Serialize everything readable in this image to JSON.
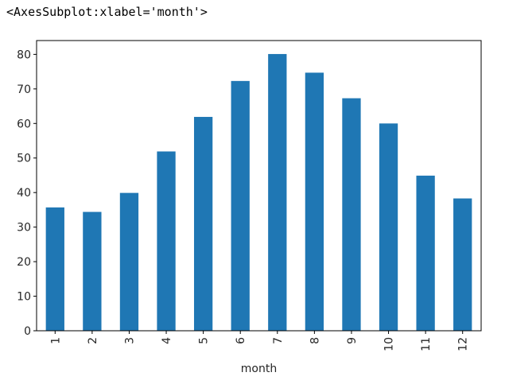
{
  "output_repr": "<AxesSubplot:xlabel='month'>",
  "chart_data": {
    "type": "bar",
    "categories": [
      "1",
      "2",
      "3",
      "4",
      "5",
      "6",
      "7",
      "8",
      "9",
      "10",
      "11",
      "12"
    ],
    "values": [
      35.7,
      34.4,
      39.9,
      51.9,
      61.9,
      72.3,
      80.1,
      74.7,
      67.3,
      60.0,
      44.9,
      38.3
    ],
    "xlabel": "month",
    "ylabel": "",
    "ylim": [
      0,
      84
    ],
    "yticks": [
      0,
      10,
      20,
      30,
      40,
      50,
      60,
      70,
      80
    ],
    "bar_color": "#1f77b4",
    "grid": false,
    "legend": "none"
  }
}
